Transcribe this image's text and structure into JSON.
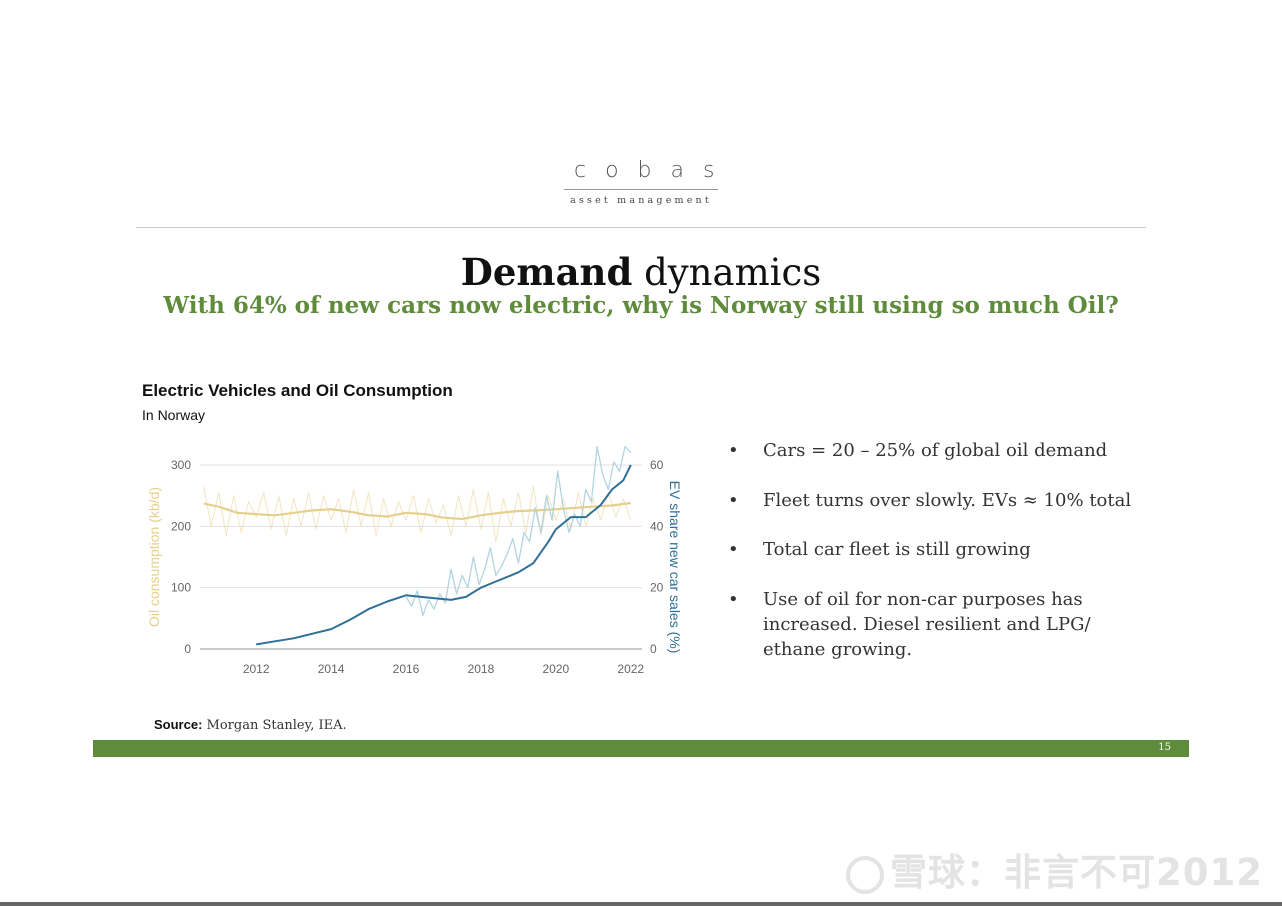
{
  "logo": {
    "main": "cobas",
    "sub": "asset management"
  },
  "title": {
    "bold": "Demand",
    "light": "dynamics"
  },
  "subtitle": "With 64% of new cars now electric, why is Norway still using so much Oil?",
  "bullets": [
    "Cars = 20 – 25% of global oil demand",
    "Fleet turns over slowly. EVs ≈ 10% total",
    "Total car fleet is still growing",
    "Use of oil for non-car purposes has increased. Diesel resilient and LPG/ ethane growing."
  ],
  "bullet_char": "•",
  "source": {
    "label": "Source:",
    "text": "Morgan Stanley, IEA."
  },
  "page_number": "15",
  "watermark": "雪球：非言不可2012",
  "colors": {
    "green": "#5e8c3a",
    "oil": "#e6cf8e",
    "ev": "#2f7097",
    "ev_light": "#a9cfdd"
  },
  "chart_data": {
    "type": "line",
    "title": "Electric Vehicles and Oil Consumption",
    "subtitle": "In Norway",
    "ylabel_left": "Oil consumption (kb/d)",
    "ylabel_right": "EV share new car sales (%)",
    "xlim": [
      2010.5,
      2022.3
    ],
    "x_ticks": [
      2012,
      2014,
      2016,
      2018,
      2020,
      2022
    ],
    "ylim_left": [
      0,
      300
    ],
    "y_ticks_left": [
      0,
      100,
      200,
      300
    ],
    "ylim_right": [
      0,
      60
    ],
    "y_ticks_right": [
      0,
      20,
      40,
      60
    ],
    "grid": true,
    "series": [
      {
        "name": "Oil consumption (kb/d)",
        "axis": "left",
        "style": "monthly",
        "x": [
          2010.6,
          2010.8,
          2011.0,
          2011.2,
          2011.4,
          2011.6,
          2011.8,
          2012.0,
          2012.2,
          2012.4,
          2012.6,
          2012.8,
          2013.0,
          2013.2,
          2013.4,
          2013.6,
          2013.8,
          2014.0,
          2014.2,
          2014.4,
          2014.6,
          2014.8,
          2015.0,
          2015.2,
          2015.4,
          2015.6,
          2015.8,
          2016.0,
          2016.2,
          2016.4,
          2016.6,
          2016.8,
          2017.0,
          2017.2,
          2017.4,
          2017.6,
          2017.8,
          2018.0,
          2018.2,
          2018.4,
          2018.6,
          2018.8,
          2019.0,
          2019.2,
          2019.4,
          2019.6,
          2019.8,
          2020.0,
          2020.2,
          2020.4,
          2020.6,
          2020.8,
          2021.0,
          2021.2,
          2021.4,
          2021.6,
          2021.8,
          2022.0
        ],
        "values": [
          265,
          200,
          255,
          185,
          250,
          190,
          240,
          215,
          255,
          195,
          250,
          185,
          245,
          200,
          255,
          195,
          250,
          210,
          245,
          190,
          260,
          200,
          255,
          185,
          245,
          200,
          240,
          210,
          250,
          190,
          245,
          205,
          235,
          185,
          250,
          200,
          260,
          195,
          255,
          175,
          245,
          200,
          255,
          190,
          265,
          185,
          250,
          210,
          245,
          195,
          255,
          200,
          245,
          210,
          255,
          215,
          245,
          210
        ]
      },
      {
        "name": "Oil consumption trend",
        "axis": "left",
        "style": "trend",
        "x": [
          2010.6,
          2011.0,
          2011.5,
          2012.0,
          2012.5,
          2013.0,
          2013.5,
          2014.0,
          2014.5,
          2015.0,
          2015.5,
          2016.0,
          2016.5,
          2017.0,
          2017.5,
          2018.0,
          2018.5,
          2019.0,
          2019.5,
          2020.0,
          2020.5,
          2021.0,
          2021.5,
          2022.0
        ],
        "values": [
          237,
          232,
          222,
          220,
          218,
          222,
          226,
          228,
          224,
          218,
          216,
          222,
          220,
          214,
          212,
          218,
          222,
          225,
          226,
          228,
          230,
          232,
          234,
          238
        ]
      },
      {
        "name": "EV share new car sales (%) monthly",
        "axis": "right",
        "style": "monthly",
        "x": [
          2016.0,
          2016.15,
          2016.3,
          2016.45,
          2016.6,
          2016.75,
          2016.9,
          2017.05,
          2017.2,
          2017.35,
          2017.5,
          2017.65,
          2017.8,
          2017.95,
          2018.1,
          2018.25,
          2018.4,
          2018.55,
          2018.7,
          2018.85,
          2019.0,
          2019.15,
          2019.3,
          2019.45,
          2019.6,
          2019.75,
          2019.9,
          2020.05,
          2020.2,
          2020.35,
          2020.5,
          2020.65,
          2020.8,
          2020.95,
          2021.1,
          2021.25,
          2021.4,
          2021.55,
          2021.7,
          2021.85,
          2022.0
        ],
        "values": [
          17,
          14,
          19,
          11,
          16,
          13,
          18,
          15,
          26,
          18,
          24,
          20,
          30,
          21,
          26,
          33,
          24,
          27,
          31,
          36,
          28,
          38,
          35,
          46,
          38,
          50,
          42,
          58,
          46,
          38,
          44,
          40,
          52,
          48,
          66,
          57,
          52,
          61,
          58,
          66,
          64
        ]
      },
      {
        "name": "EV share new car sales (%) trend",
        "axis": "right",
        "style": "trend",
        "x": [
          2012.0,
          2012.5,
          2013.0,
          2013.5,
          2014.0,
          2014.5,
          2015.0,
          2015.5,
          2016.0,
          2016.4,
          2016.8,
          2017.2,
          2017.6,
          2018.0,
          2018.4,
          2018.8,
          2019.0,
          2019.4,
          2019.8,
          2020.0,
          2020.4,
          2020.8,
          2021.0,
          2021.2,
          2021.5,
          2021.8,
          2022.0
        ],
        "values": [
          1.5,
          2.5,
          3.5,
          5,
          6.5,
          9.5,
          13,
          15.5,
          17.5,
          17,
          16.5,
          16,
          17,
          20,
          22,
          24,
          25,
          28,
          35,
          39,
          43,
          43,
          45,
          47,
          52,
          55,
          60
        ]
      }
    ]
  }
}
